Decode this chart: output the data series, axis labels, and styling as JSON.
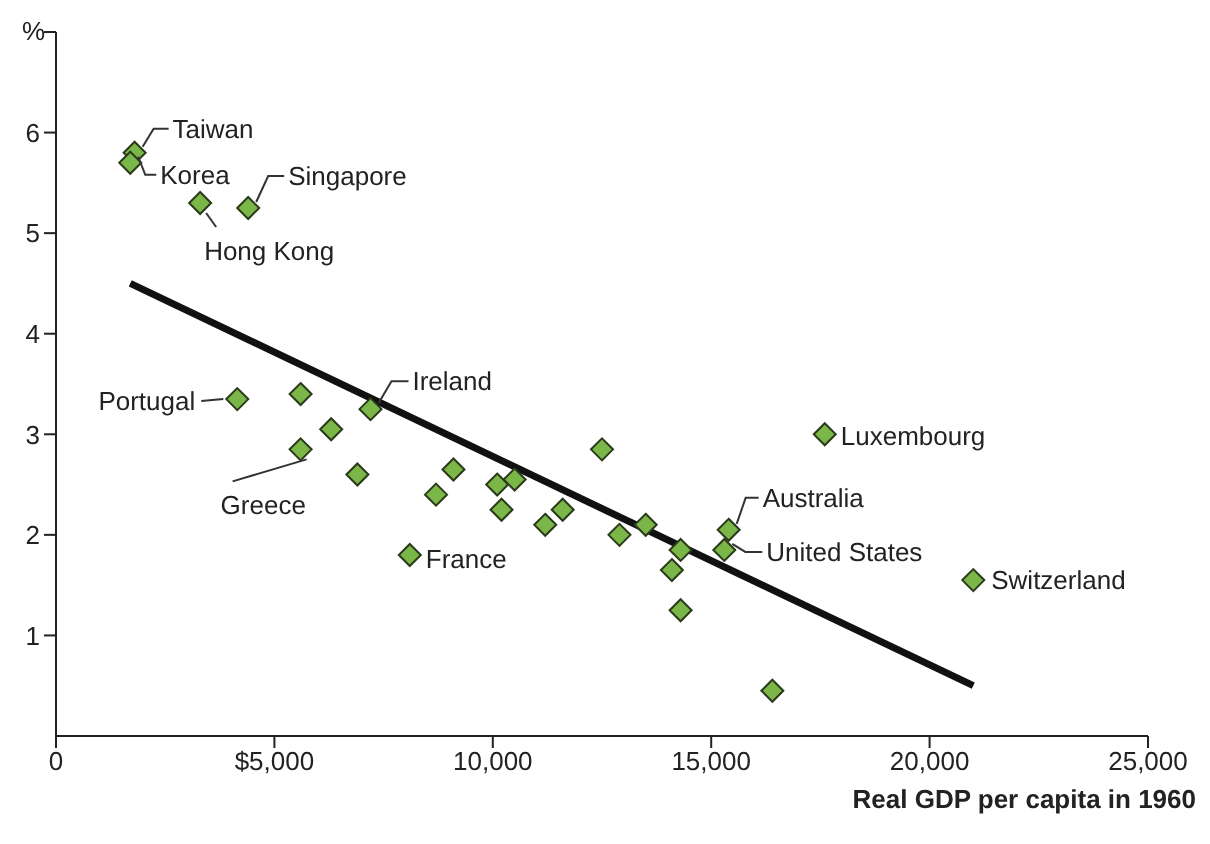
{
  "chart_data": {
    "type": "scatter",
    "xlabel": "Real GDP per capita in 1960",
    "ylabel": "%",
    "grid": false,
    "legend": false,
    "xlim": [
      0,
      25000
    ],
    "xticks": [
      0,
      {
        "value": 5000,
        "label": "$5,000"
      },
      {
        "value": 10000,
        "label": "10,000"
      },
      {
        "value": 15000,
        "label": "15,000"
      },
      {
        "value": 20000,
        "label": "20,000"
      },
      {
        "value": 25000,
        "label": "25,000"
      }
    ],
    "ylim": [
      0,
      7
    ],
    "yticks": [
      1,
      2,
      3,
      4,
      5,
      6,
      {
        "value": 7,
        "label": null
      }
    ],
    "series": [
      {
        "marker": "diamond",
        "color": "#7ab648",
        "x": [
          1800,
          1700,
          4400,
          3300,
          4150,
          7200,
          5600,
          8100,
          17600,
          15400,
          15300,
          21000,
          5600,
          6300,
          6900,
          9100,
          8700,
          10100,
          10500,
          10200,
          11600,
          11200,
          12500,
          12900,
          13500,
          14300,
          14100,
          14300,
          16400
        ],
        "values": [
          5.8,
          5.7,
          5.25,
          5.3,
          3.35,
          3.25,
          2.85,
          1.8,
          3.0,
          2.05,
          1.85,
          1.55,
          3.4,
          3.05,
          2.6,
          2.65,
          2.4,
          2.5,
          2.55,
          2.25,
          2.25,
          2.1,
          2.85,
          2.0,
          2.1,
          1.85,
          1.65,
          1.25,
          0.45
        ]
      },
      {
        "type": "line",
        "color": "#111111",
        "x": [
          1700,
          21000
        ],
        "values": [
          4.5,
          0.5
        ]
      }
    ],
    "annotations": [
      {
        "text": "Taiwan",
        "x": 1800,
        "y": 5.8
      },
      {
        "text": "Korea",
        "x": 1700,
        "y": 5.7
      },
      {
        "text": "Singapore",
        "x": 4400,
        "y": 5.25
      },
      {
        "text": "Hong Kong",
        "x": 3300,
        "y": 5.3
      },
      {
        "text": "Portugal",
        "x": 4150,
        "y": 3.35
      },
      {
        "text": "Ireland",
        "x": 7200,
        "y": 3.25
      },
      {
        "text": "Greece",
        "x": 5600,
        "y": 2.85
      },
      {
        "text": "France",
        "x": 8100,
        "y": 1.8
      },
      {
        "text": "Luxembourg",
        "x": 17600,
        "y": 3.0
      },
      {
        "text": "Australia",
        "x": 15400,
        "y": 2.05
      },
      {
        "text": "United States",
        "x": 15300,
        "y": 1.85
      },
      {
        "text": "Switzerland",
        "x": 21000,
        "y": 1.55
      }
    ]
  }
}
